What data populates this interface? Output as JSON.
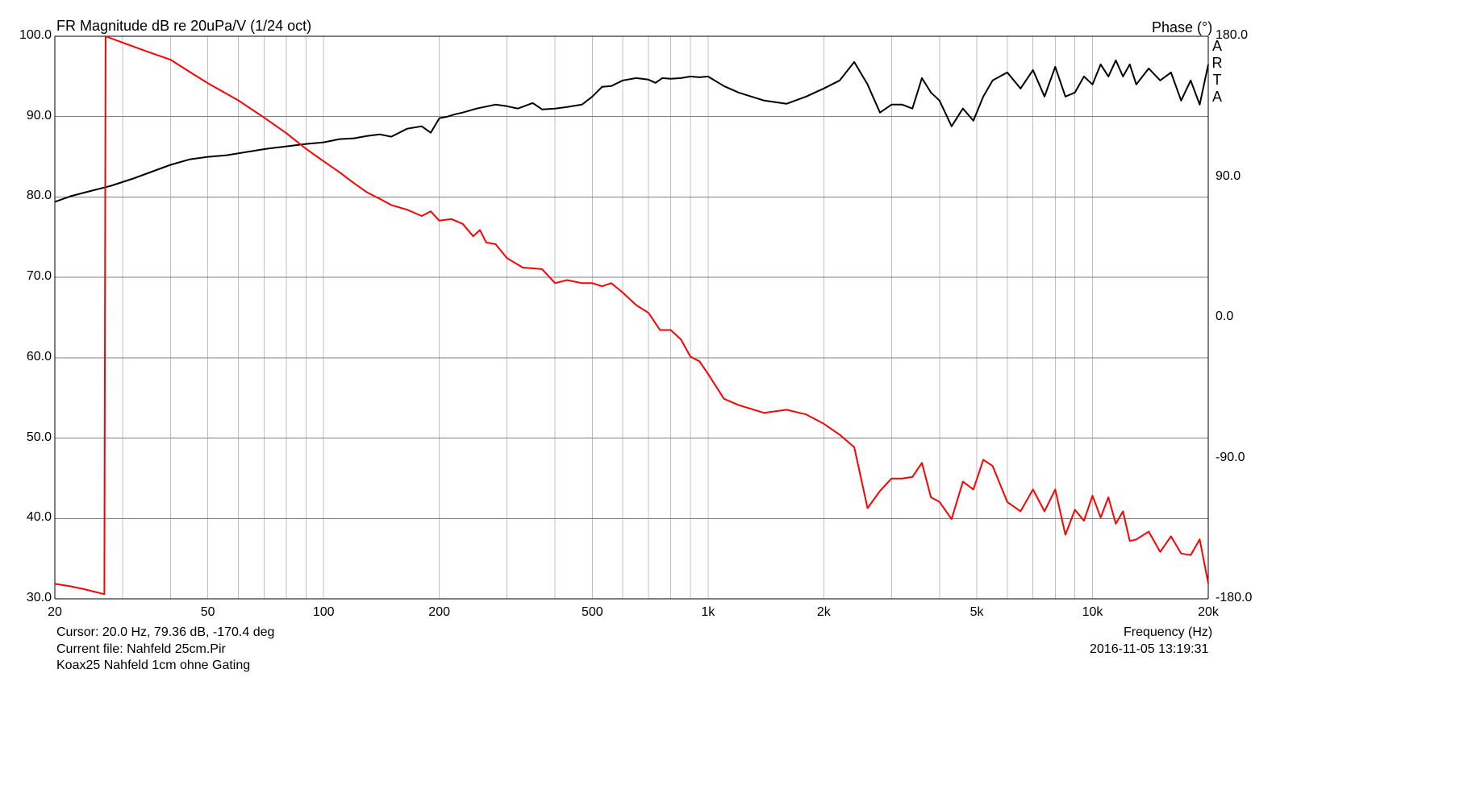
{
  "title": "FR Magnitude dB re 20uPa/V (1/24 oct)",
  "right_title": "Phase (°)",
  "brand_letters": [
    "A",
    "R",
    "T",
    "A"
  ],
  "cursor_text": "Cursor: 20.0 Hz, 79.36 dB, -170.4 deg",
  "current_file_text": "Current file: Nahfeld 25cm.Pir",
  "description_text": "Koax25 Nahfeld 1cm ohne Gating",
  "date_text": "2016-11-05  13:19:31",
  "colors": {
    "magnitude": "#000000",
    "phase": "#ff0000",
    "grid": "#c0c0c0",
    "axes": "#000000"
  },
  "chart_data": {
    "type": "line",
    "title": "FR Magnitude dB re 20uPa/V (1/24 oct)",
    "xlabel": "Frequency (Hz)",
    "ylabel_right": "Phase (°)",
    "x_scale": "log",
    "xlim": [
      20,
      20000
    ],
    "ylim": [
      30,
      100
    ],
    "ylim_right": [
      -180,
      180
    ],
    "grid": true,
    "x_tick_labels": [
      "20",
      "50",
      "100",
      "200",
      "500",
      "1k",
      "2k",
      "5k",
      "10k",
      "20k"
    ],
    "x_tick_values": [
      20,
      50,
      100,
      200,
      500,
      1000,
      2000,
      5000,
      10000,
      20000
    ],
    "y_tick_labels": [
      "100.0",
      "90.0",
      "80.0",
      "70.0",
      "60.0",
      "50.0",
      "40.0",
      "30.0"
    ],
    "y_tick_values": [
      100,
      90,
      80,
      70,
      60,
      50,
      40,
      30
    ],
    "y_right_tick_labels": [
      "180.0",
      "90.0",
      "0.0",
      "-90.0",
      "-180.0"
    ],
    "y_right_tick_values": [
      180,
      90,
      0,
      -90,
      -180
    ],
    "series": [
      {
        "axis": "left",
        "unit": "dB",
        "x": [
          20,
          22,
          25,
          28,
          32,
          36,
          40,
          45,
          50,
          56,
          63,
          71,
          80,
          90,
          100,
          110,
          120,
          130,
          140,
          150,
          165,
          180,
          190,
          200,
          210,
          220,
          230,
          250,
          280,
          300,
          320,
          350,
          370,
          400,
          430,
          470,
          500,
          530,
          560,
          600,
          650,
          700,
          730,
          760,
          800,
          850,
          900,
          950,
          1000,
          1100,
          1200,
          1400,
          1600,
          1800,
          2000,
          2200,
          2400,
          2600,
          2800,
          3000,
          3200,
          3400,
          3600,
          3800,
          4000,
          4300,
          4600,
          4900,
          5200,
          5500,
          6000,
          6500,
          7000,
          7500,
          8000,
          8500,
          9000,
          9500,
          10000,
          10500,
          11000,
          11500,
          12000,
          12500,
          13000,
          14000,
          15000,
          16000,
          17000,
          18000,
          19000,
          20000
        ],
        "values": [
          79.4,
          80.1,
          80.8,
          81.4,
          82.3,
          83.2,
          84.0,
          84.7,
          85.0,
          85.2,
          85.6,
          86.0,
          86.3,
          86.6,
          86.8,
          87.2,
          87.3,
          87.6,
          87.8,
          87.5,
          88.5,
          88.8,
          88.0,
          89.8,
          90.0,
          90.3,
          90.5,
          91.0,
          91.5,
          91.3,
          91.0,
          91.7,
          90.9,
          91.0,
          91.2,
          91.5,
          92.5,
          93.7,
          93.8,
          94.5,
          94.8,
          94.6,
          94.2,
          94.8,
          94.7,
          94.8,
          95.0,
          94.9,
          95.0,
          93.8,
          93.0,
          92.0,
          91.6,
          92.5,
          93.5,
          94.5,
          96.8,
          94.0,
          90.5,
          91.5,
          91.5,
          91.0,
          94.8,
          93.0,
          92.0,
          88.8,
          91.0,
          89.5,
          92.5,
          94.5,
          95.5,
          93.5,
          95.8,
          92.5,
          96.2,
          92.5,
          93.0,
          95.0,
          94.0,
          96.5,
          95.0,
          97.0,
          95.0,
          96.5,
          94.0,
          96.0,
          94.5,
          95.5,
          92.0,
          94.5,
          91.5,
          96.5
        ]
      },
      {
        "axis": "right",
        "unit": "deg",
        "x": [
          20,
          22,
          24,
          26.9,
          27.1,
          30,
          35,
          40,
          45,
          50,
          60,
          70,
          80,
          90,
          100,
          110,
          120,
          130,
          140,
          150,
          165,
          180,
          190,
          200,
          215,
          230,
          245,
          255,
          265,
          280,
          300,
          330,
          370,
          400,
          430,
          470,
          500,
          530,
          560,
          600,
          650,
          700,
          750,
          800,
          850,
          900,
          950,
          1000,
          1100,
          1200,
          1400,
          1600,
          1800,
          2000,
          2200,
          2400,
          2600,
          2800,
          3000,
          3200,
          3400,
          3600,
          3800,
          4000,
          4300,
          4600,
          4900,
          5200,
          5500,
          6000,
          6500,
          7000,
          7500,
          8000,
          8500,
          9000,
          9500,
          10000,
          10500,
          11000,
          11500,
          12000,
          12500,
          13000,
          14000,
          15000,
          16000,
          17000,
          18000,
          19000,
          20000
        ],
        "values": [
          -170.4,
          -172.0,
          -174.0,
          -177.0,
          180.0,
          176.0,
          170.0,
          165.0,
          157.0,
          150.0,
          139.0,
          128.0,
          118.0,
          108.0,
          100.0,
          93.0,
          86.0,
          80.0,
          76.0,
          72.0,
          69.0,
          65.0,
          68.0,
          62.0,
          63.0,
          60.0,
          52.0,
          56.0,
          48.0,
          47.0,
          38.0,
          32.0,
          31.0,
          22.0,
          24.0,
          22.0,
          22.0,
          20.0,
          22.0,
          16.0,
          8.0,
          3.0,
          -8.0,
          -8.0,
          -14.0,
          -25.0,
          -28.0,
          -36.0,
          -52.0,
          -56.0,
          -61.0,
          -59.0,
          -62.0,
          -68.0,
          -75.0,
          -83.0,
          -122.0,
          -111.0,
          -103.0,
          -103.0,
          -102.0,
          -93.0,
          -115.0,
          -118.0,
          -129.0,
          -105.0,
          -110.0,
          -91.0,
          -95.0,
          -118.0,
          -124.0,
          -110.0,
          -124.0,
          -110.0,
          -139.0,
          -123.0,
          -130.0,
          -114.0,
          -128.0,
          -115.0,
          -132.0,
          -124.0,
          -143.0,
          -142.0,
          -137.0,
          -150.0,
          -140.0,
          -151.0,
          -152.0,
          -142.0,
          -170.0
        ]
      }
    ]
  }
}
